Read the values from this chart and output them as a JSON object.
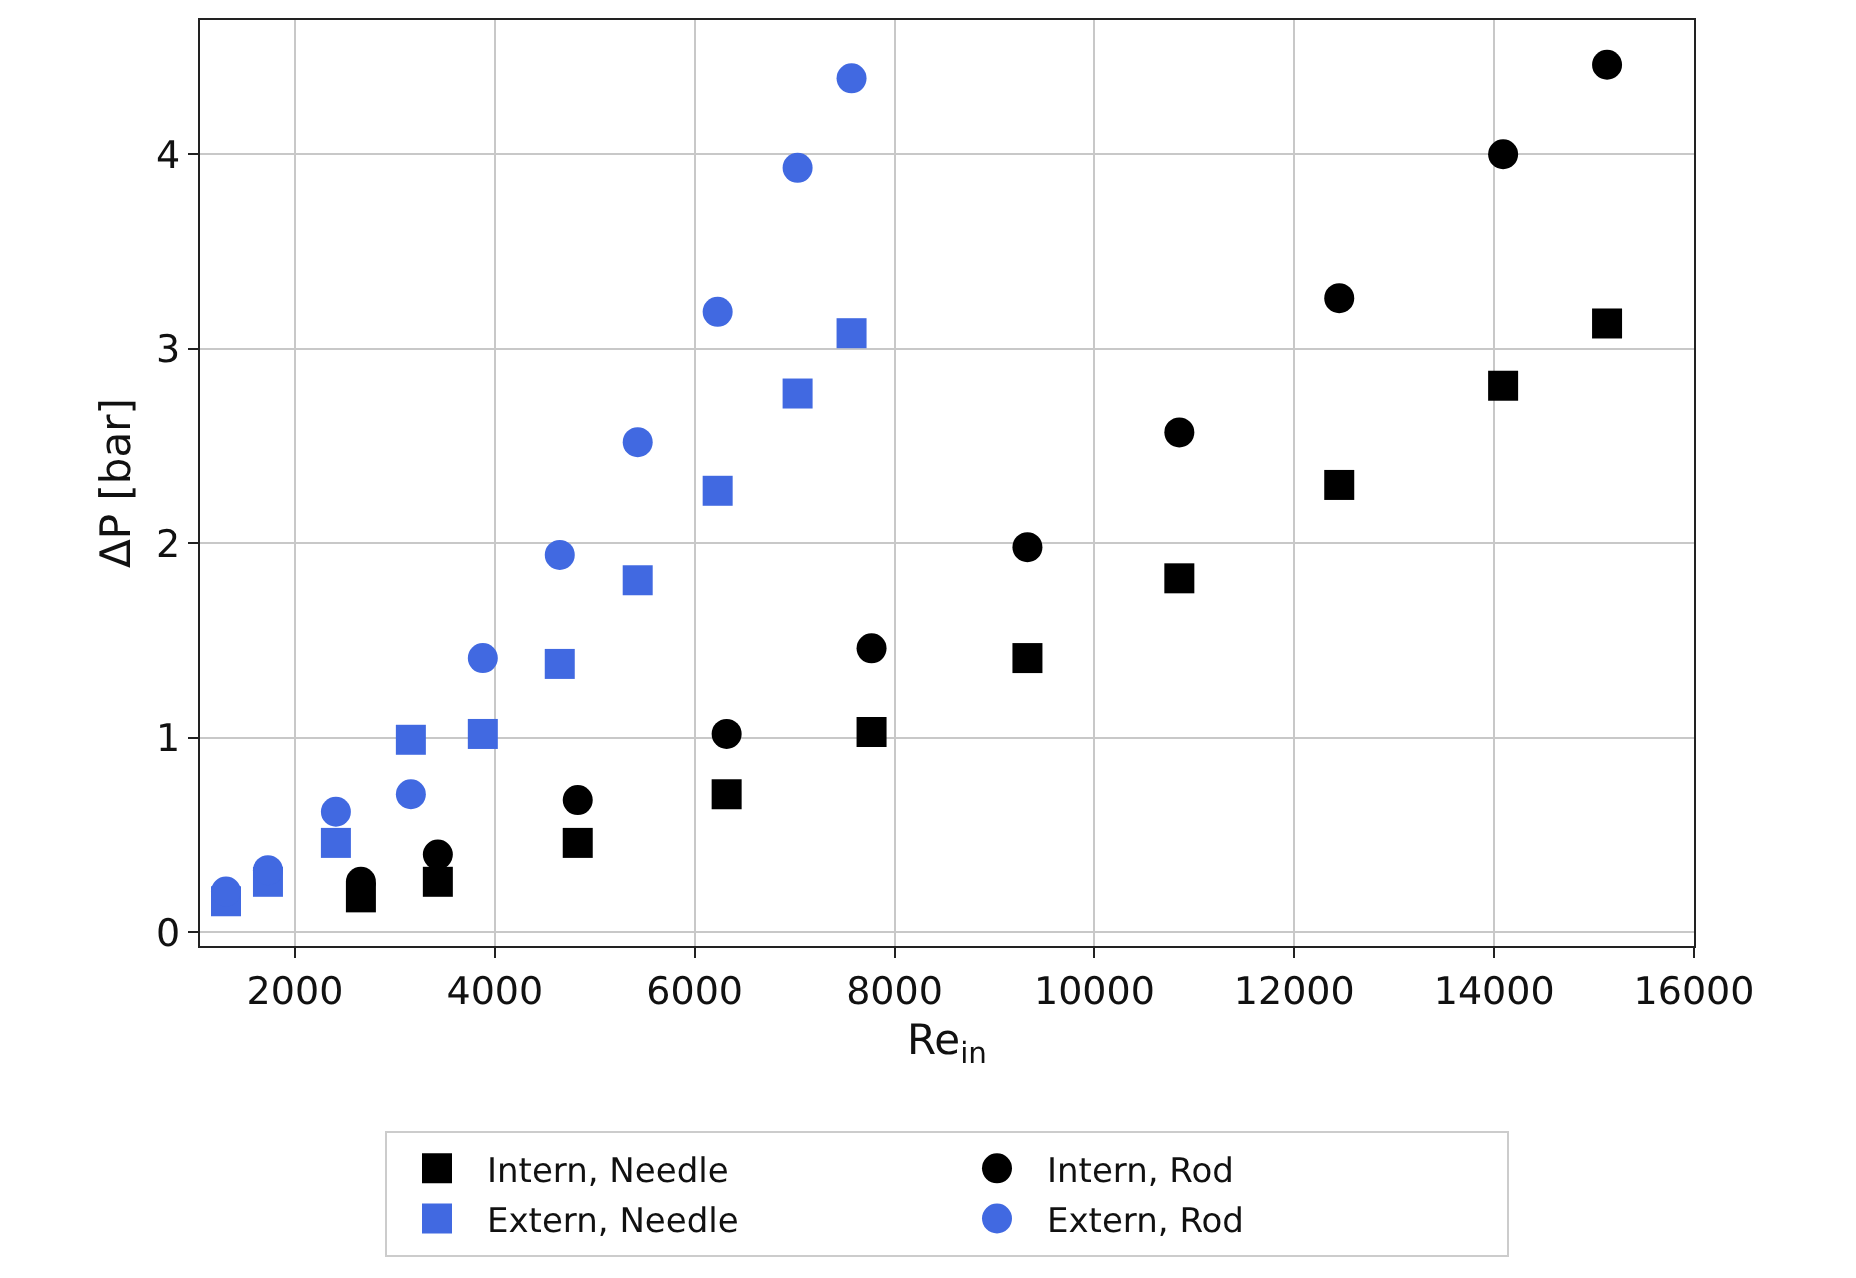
{
  "chart_data": {
    "type": "scatter",
    "xlabel": "Re$_{in}$",
    "ylabel": "ΔP [bar]",
    "xlim": [
      1050,
      16000
    ],
    "xticks": [
      2000,
      4000,
      6000,
      8000,
      10000,
      12000,
      14000,
      16000
    ],
    "ylim": [
      -0.07,
      4.69
    ],
    "yticks": [
      0,
      1,
      2,
      3,
      4
    ],
    "grid": true,
    "legend": "bottom",
    "series": [
      {
        "name": "Intern, Needle",
        "color": "#000000",
        "marker": "square",
        "x": [
          2660,
          3430,
          4830,
          6320,
          7770,
          9330,
          10850,
          12450,
          14090,
          15130
        ],
        "values": [
          0.18,
          0.26,
          0.46,
          0.71,
          1.03,
          1.41,
          1.82,
          2.3,
          2.81,
          3.13
        ]
      },
      {
        "name": "Intern, Rod",
        "color": "#000000",
        "marker": "circle",
        "x": [
          2660,
          3430,
          4830,
          6320,
          7770,
          9330,
          10850,
          12450,
          14090,
          15130
        ],
        "values": [
          0.26,
          0.4,
          0.68,
          1.02,
          1.46,
          1.98,
          2.57,
          3.26,
          4.0,
          4.46
        ]
      },
      {
        "name": "Extern, Needle",
        "color": "#4169e1",
        "marker": "square",
        "x": [
          1310,
          1730,
          2410,
          3160,
          3880,
          4650,
          5430,
          6230,
          7030,
          7570
        ],
        "values": [
          0.16,
          0.26,
          0.46,
          0.99,
          1.02,
          1.38,
          1.81,
          2.27,
          2.77,
          3.08
        ]
      },
      {
        "name": "Extern, Rod",
        "color": "#4169e1",
        "marker": "circle",
        "x": [
          1310,
          1730,
          2410,
          3160,
          3880,
          4650,
          5430,
          6230,
          7030,
          7570
        ],
        "values": [
          0.21,
          0.32,
          0.62,
          0.71,
          1.41,
          1.94,
          2.52,
          3.19,
          3.93,
          4.39
        ]
      }
    ]
  }
}
